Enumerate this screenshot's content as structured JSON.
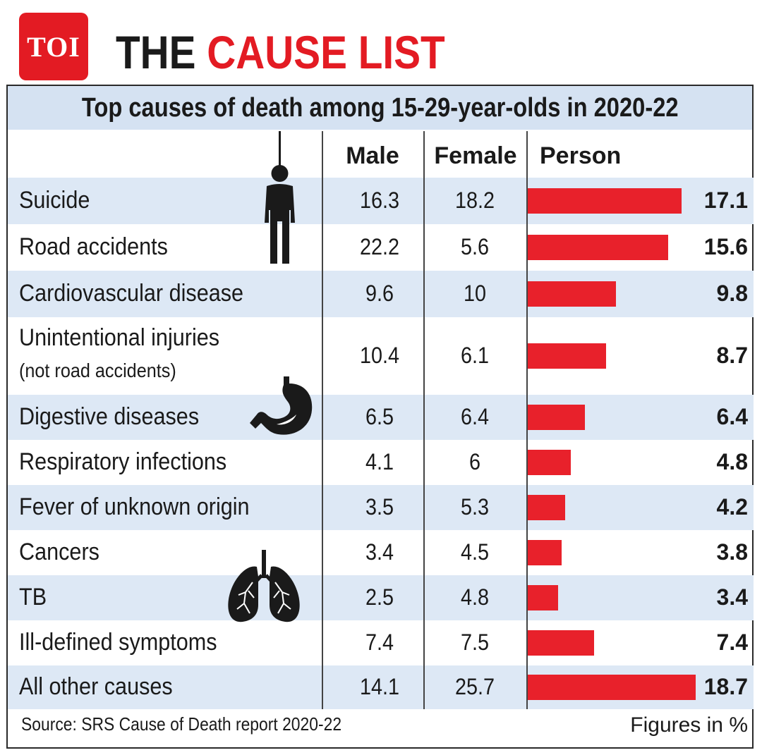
{
  "brand": {
    "logo_text": "TOI",
    "logo_color": "#e31b23"
  },
  "headline": {
    "part1": "THE ",
    "part2": "CAUSE LIST"
  },
  "chart_data": {
    "type": "table",
    "title": "Top causes of death among 15-29-year-olds in 2020-22",
    "columns": [
      "Male",
      "Female",
      "Person"
    ],
    "rows": [
      {
        "cause": "Suicide",
        "sub": "",
        "male": "16.3",
        "female": "18.2",
        "person": 17.1
      },
      {
        "cause": "Road accidents",
        "sub": "",
        "male": "22.2",
        "female": "5.6",
        "person": 15.6
      },
      {
        "cause": "Cardiovascular disease",
        "sub": "",
        "male": "9.6",
        "female": "10",
        "person": 9.8
      },
      {
        "cause": "Unintentional injuries",
        "sub": "(not road accidents)",
        "male": "10.4",
        "female": "6.1",
        "person": 8.7
      },
      {
        "cause": "Digestive diseases",
        "sub": "",
        "male": "6.5",
        "female": "6.4",
        "person": 6.4
      },
      {
        "cause": "Respiratory infections",
        "sub": "",
        "male": "4.1",
        "female": "6",
        "person": 4.8
      },
      {
        "cause": "Fever of unknown origin",
        "sub": "",
        "male": "3.5",
        "female": "5.3",
        "person": 4.2
      },
      {
        "cause": "Cancers",
        "sub": "",
        "male": "3.4",
        "female": "4.5",
        "person": 3.8
      },
      {
        "cause": "TB",
        "sub": "",
        "male": "2.5",
        "female": "4.8",
        "person": 3.4
      },
      {
        "cause": "Ill-defined symptoms",
        "sub": "",
        "male": "7.4",
        "female": "7.5",
        "person": 7.4
      },
      {
        "cause": "All other causes",
        "sub": "",
        "male": "14.1",
        "female": "25.7",
        "person": 18.7
      }
    ],
    "person_bar_color": "#e8212b",
    "row_shade_color": "#dde8f5",
    "header_band_color": "#d5e2f2"
  },
  "source": "Source: SRS Cause of Death report 2020-22",
  "unit_note": "Figures in %",
  "icons": [
    "hanging-figure-icon",
    "stomach-icon",
    "lungs-icon"
  ]
}
